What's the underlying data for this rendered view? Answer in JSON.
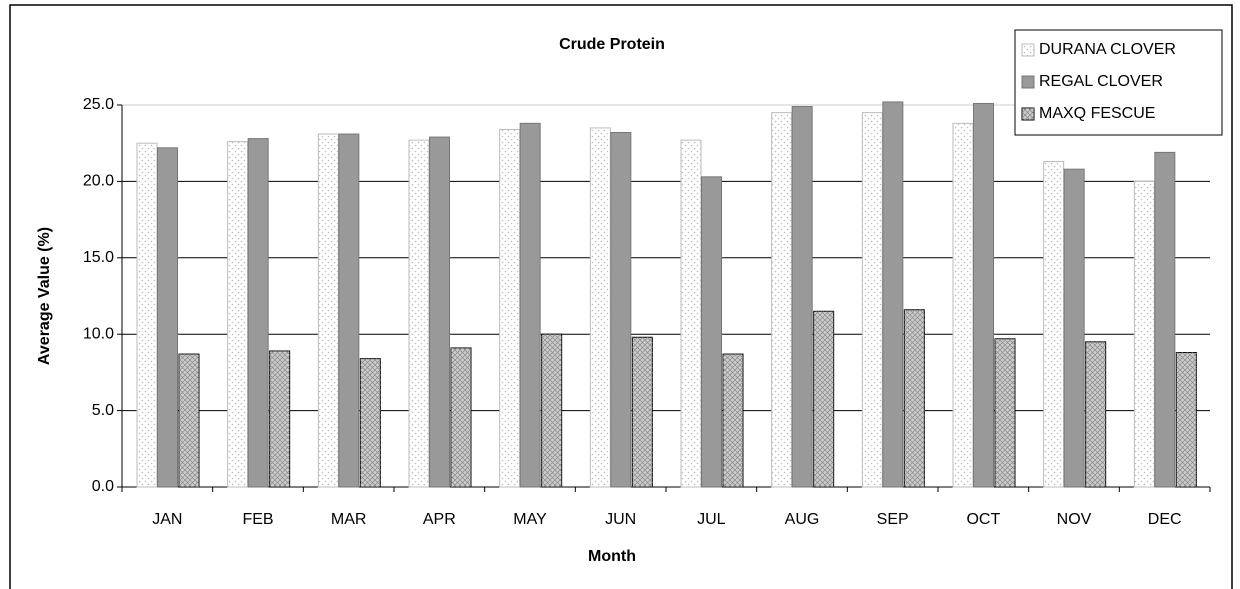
{
  "chart_data": {
    "type": "bar",
    "title": "Crude Protein",
    "xlabel": "Month",
    "ylabel": "Average Value (%)",
    "categories": [
      "JAN",
      "FEB",
      "MAR",
      "APR",
      "MAY",
      "JUN",
      "JUL",
      "AUG",
      "SEP",
      "OCT",
      "NOV",
      "DEC"
    ],
    "series": [
      {
        "name": "DURANA CLOVER",
        "color": "#ffffff",
        "values": [
          22.5,
          22.6,
          23.1,
          22.7,
          23.4,
          23.5,
          22.7,
          24.5,
          24.5,
          23.8,
          21.3,
          20.0
        ]
      },
      {
        "name": "REGAL CLOVER",
        "color": "#999999",
        "values": [
          22.2,
          22.8,
          23.1,
          22.9,
          23.8,
          23.2,
          20.3,
          24.9,
          25.2,
          25.1,
          20.8,
          21.9
        ]
      },
      {
        "name": "MAXQ FESCUE",
        "color": "#cccccc",
        "values": [
          8.7,
          8.9,
          8.4,
          9.1,
          10.0,
          9.8,
          8.7,
          11.5,
          11.6,
          9.7,
          9.5,
          8.8
        ]
      }
    ],
    "ylim": [
      0,
      25
    ],
    "yticks": [
      {
        "value": 0,
        "label": "0.0"
      },
      {
        "value": 5,
        "label": "5.0"
      },
      {
        "value": 10,
        "label": "10.0"
      },
      {
        "value": 15,
        "label": "15.0"
      },
      {
        "value": 20,
        "label": "20.0"
      },
      {
        "value": 25,
        "label": "25.0"
      }
    ],
    "grid": true,
    "legend": "upper right"
  }
}
